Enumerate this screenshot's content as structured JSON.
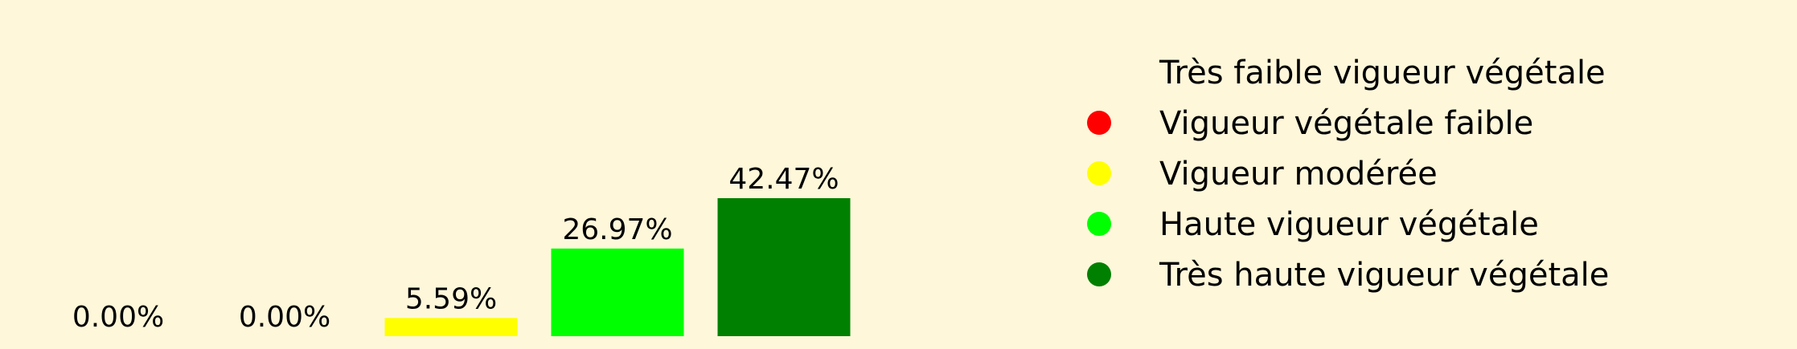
{
  "chart_data": {
    "type": "bar",
    "categories": [
      "Très faible vigueur végétale",
      "Vigueur végétale faible",
      "Vigueur modérée",
      "Haute vigueur végétale",
      "Très haute vigueur végétale"
    ],
    "values": [
      0.0,
      0.0,
      5.59,
      26.97,
      42.47
    ],
    "data_labels": [
      "0.00%",
      "0.00%",
      "5.59%",
      "26.97%",
      "42.47%"
    ],
    "colors": [
      "#fef7da",
      "#ff0000",
      "#ffff00",
      "#00ff00",
      "#008000"
    ],
    "ylim": [
      0,
      45
    ],
    "grid": false,
    "legend_position": "right",
    "background_color": "#fef7da"
  }
}
